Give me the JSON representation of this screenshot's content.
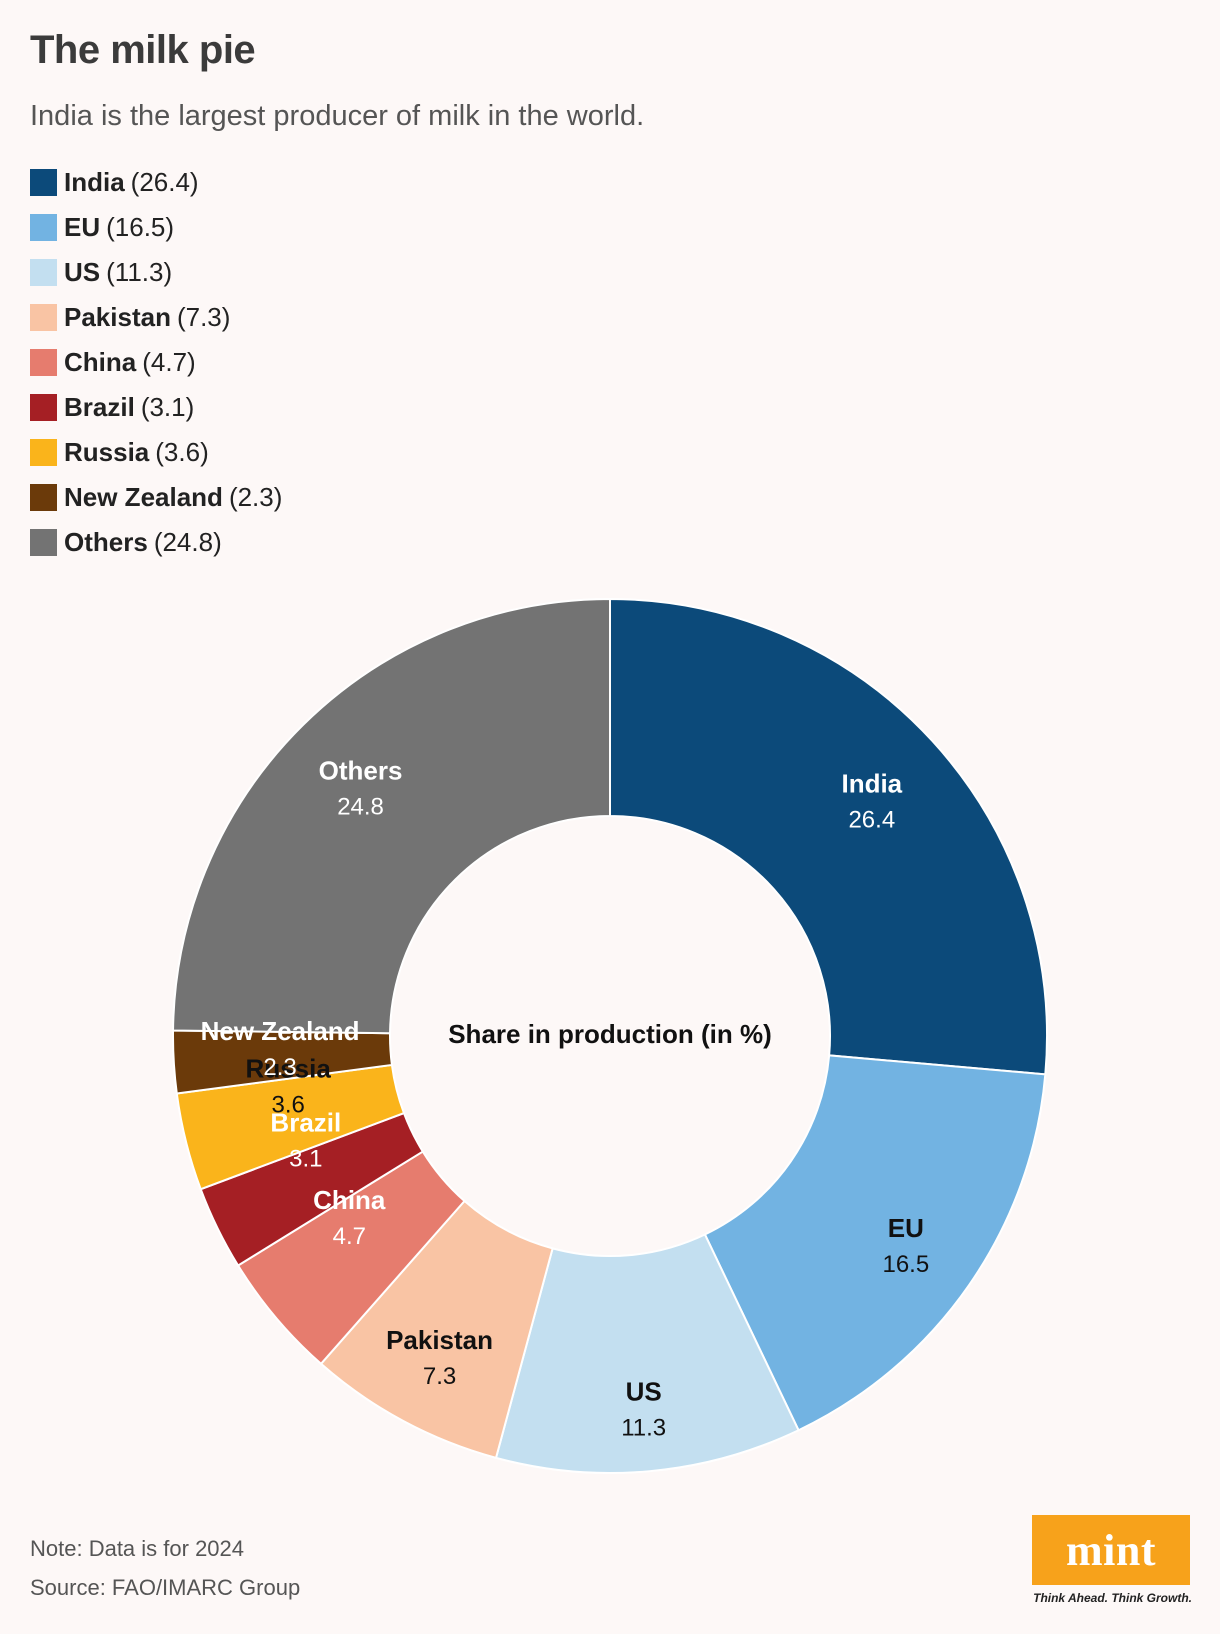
{
  "title": "The milk pie",
  "subtitle": "India is the largest producer of milk in the world.",
  "note": "Note: Data is for 2024",
  "source": "Source: FAO/IMARC Group",
  "logo": {
    "word": "mint",
    "tagline": "Think Ahead. Think Growth."
  },
  "chart_data": {
    "type": "pie",
    "title": "The milk pie",
    "center_label": "Share in production (in %)",
    "legend_placement": "top-left",
    "categories": [
      "India",
      "EU",
      "US",
      "Pakistan",
      "China",
      "Brazil",
      "Russia",
      "New Zealand",
      "Others"
    ],
    "values": [
      26.4,
      16.5,
      11.3,
      7.3,
      4.7,
      3.1,
      3.6,
      2.3,
      24.8
    ],
    "value_labels": [
      "26.4",
      "16.5",
      "11.3",
      "7.3",
      "4.7",
      "3.1",
      "3.6",
      "2.3",
      "24.8"
    ],
    "legend_values": [
      "(26.4)",
      "(16.5)",
      "(11.3)",
      "(7.3)",
      "(4.7)",
      "(3.1)",
      "(3.6)",
      "(2.3)",
      "(24.8)"
    ],
    "colors": [
      "#0c4a7a",
      "#72b3e2",
      "#c3dff0",
      "#f9c4a4",
      "#e67c6e",
      "#a51f24",
      "#fab41b",
      "#6b3a0a",
      "#737373"
    ],
    "label_colors": [
      "#ffffff",
      "#111111",
      "#111111",
      "#111111",
      "#ffffff",
      "#ffffff",
      "#111111",
      "#ffffff",
      "#ffffff"
    ]
  }
}
